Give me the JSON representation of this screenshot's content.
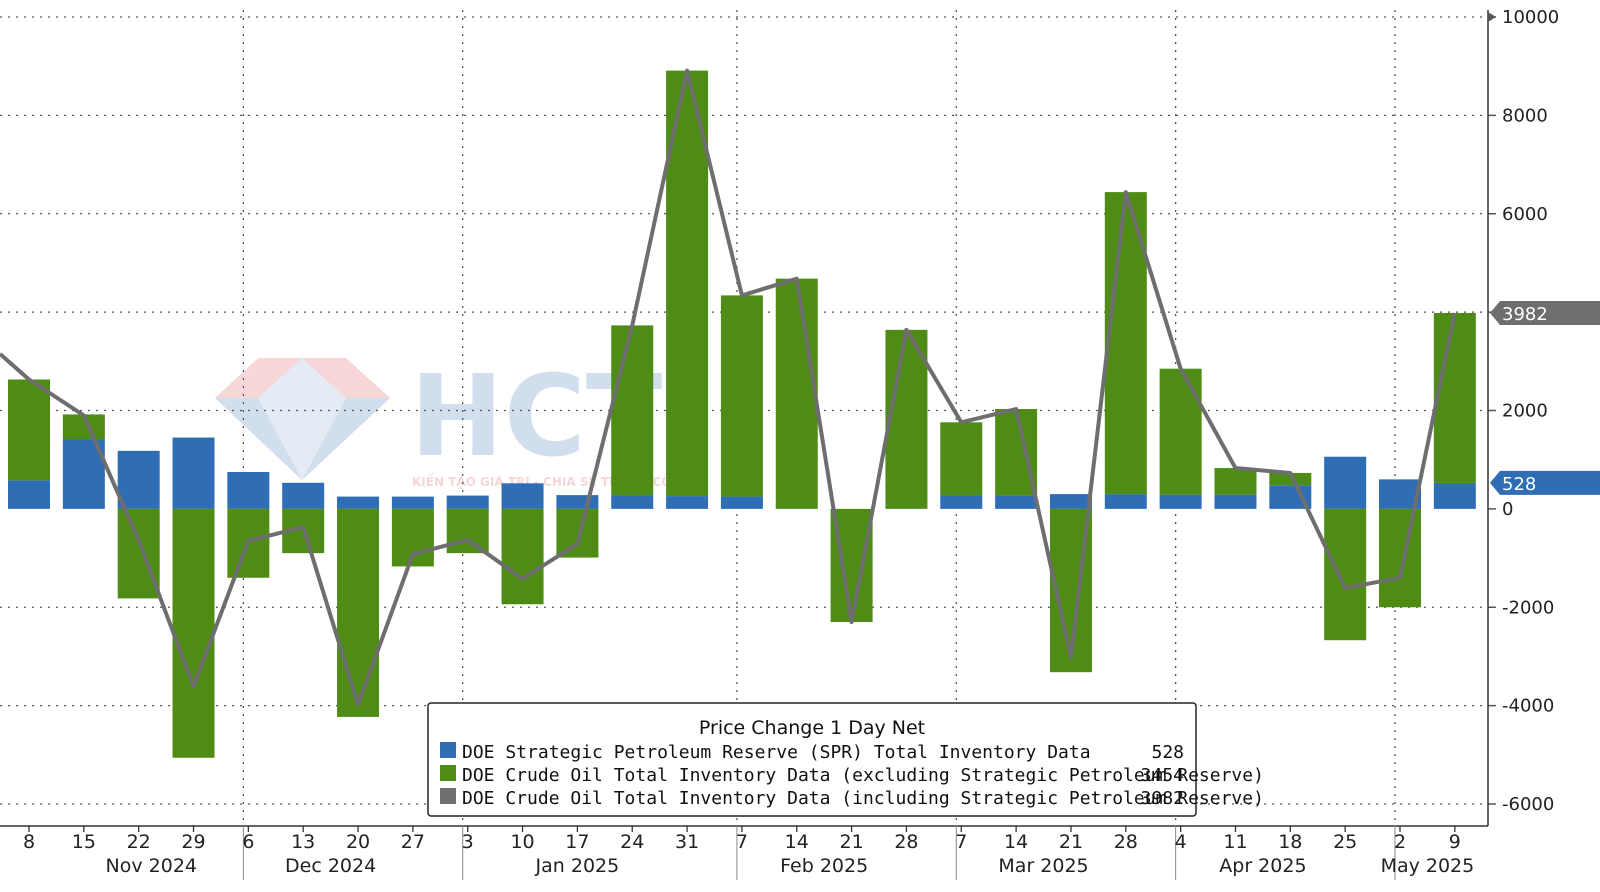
{
  "chart_data": {
    "type": "bar",
    "title": "",
    "xlabel": "",
    "ylabel": "",
    "ylim": [
      -6000,
      10000
    ],
    "yticks": [
      -6000,
      -4000,
      -2000,
      0,
      2000,
      4000,
      6000,
      8000,
      10000
    ],
    "grid": true,
    "legend_placement": "bottom-center",
    "legend_title": "Price Change 1 Day Net",
    "categories": [
      "8",
      "15",
      "22",
      "29",
      "6",
      "13",
      "20",
      "27",
      "3",
      "10",
      "17",
      "24",
      "31",
      "7",
      "14",
      "21",
      "28",
      "7",
      "14",
      "21",
      "28",
      "4",
      "11",
      "18",
      "25",
      "2",
      "9"
    ],
    "months": [
      {
        "label": "Nov 2024",
        "first": 0,
        "last": 3
      },
      {
        "label": "Dec 2024",
        "first": 4,
        "last": 7
      },
      {
        "label": "Jan 2025",
        "first": 8,
        "last": 12
      },
      {
        "label": "Feb 2025",
        "first": 13,
        "last": 16
      },
      {
        "label": "Mar 2025",
        "first": 17,
        "last": 20
      },
      {
        "label": "Apr 2025",
        "first": 21,
        "last": 24
      },
      {
        "label": "May 2025",
        "first": 25,
        "last": 26
      }
    ],
    "series": [
      {
        "name": "DOE Strategic Petroleum Reserve (SPR) Total Inventory Data",
        "kind": "bar",
        "color": "#2f6db5",
        "last_value": "528",
        "values": [
          580,
          1420,
          1180,
          1450,
          750,
          530,
          250,
          250,
          270,
          520,
          280,
          280,
          260,
          250,
          0,
          0,
          0,
          280,
          270,
          300,
          300,
          290,
          290,
          480,
          1060,
          600,
          528
        ]
      },
      {
        "name": "DOE Crude Oil Total Inventory Data (excluding Strategic Petroleum Reserve)",
        "kind": "bar",
        "color": "#4e8c15",
        "last_value": "3454",
        "values": [
          2050,
          500,
          -1820,
          -5060,
          -1400,
          -900,
          -4230,
          -1170,
          -900,
          -1940,
          -990,
          3450,
          8650,
          4090,
          4680,
          -2300,
          3640,
          1480,
          1760,
          -3320,
          6140,
          2560,
          540,
          250,
          -2670,
          -2000,
          3454
        ]
      },
      {
        "name": "DOE Crude Oil Total Inventory Data (including Strategic Petroleum Reserve)",
        "kind": "line",
        "color": "#6e6e6e",
        "last_value": "3982",
        "values": [
          2630,
          1900,
          -640,
          -3610,
          -650,
          -370,
          -3980,
          -920,
          -630,
          -1420,
          -710,
          3730,
          8910,
          4340,
          4680,
          -2300,
          3640,
          1760,
          2030,
          -3020,
          6440,
          2850,
          830,
          730,
          -1610,
          -1400,
          3982
        ]
      }
    ],
    "badges": [
      {
        "value": "3982",
        "color": "#6e6e6e"
      },
      {
        "value": "528",
        "color": "#2f6db5"
      }
    ]
  },
  "watermark": {
    "text": "HCT",
    "tagline": "KIẾN TẠO GIÁ TRỊ - CHIA SẺ THÀNH CÔNG"
  }
}
